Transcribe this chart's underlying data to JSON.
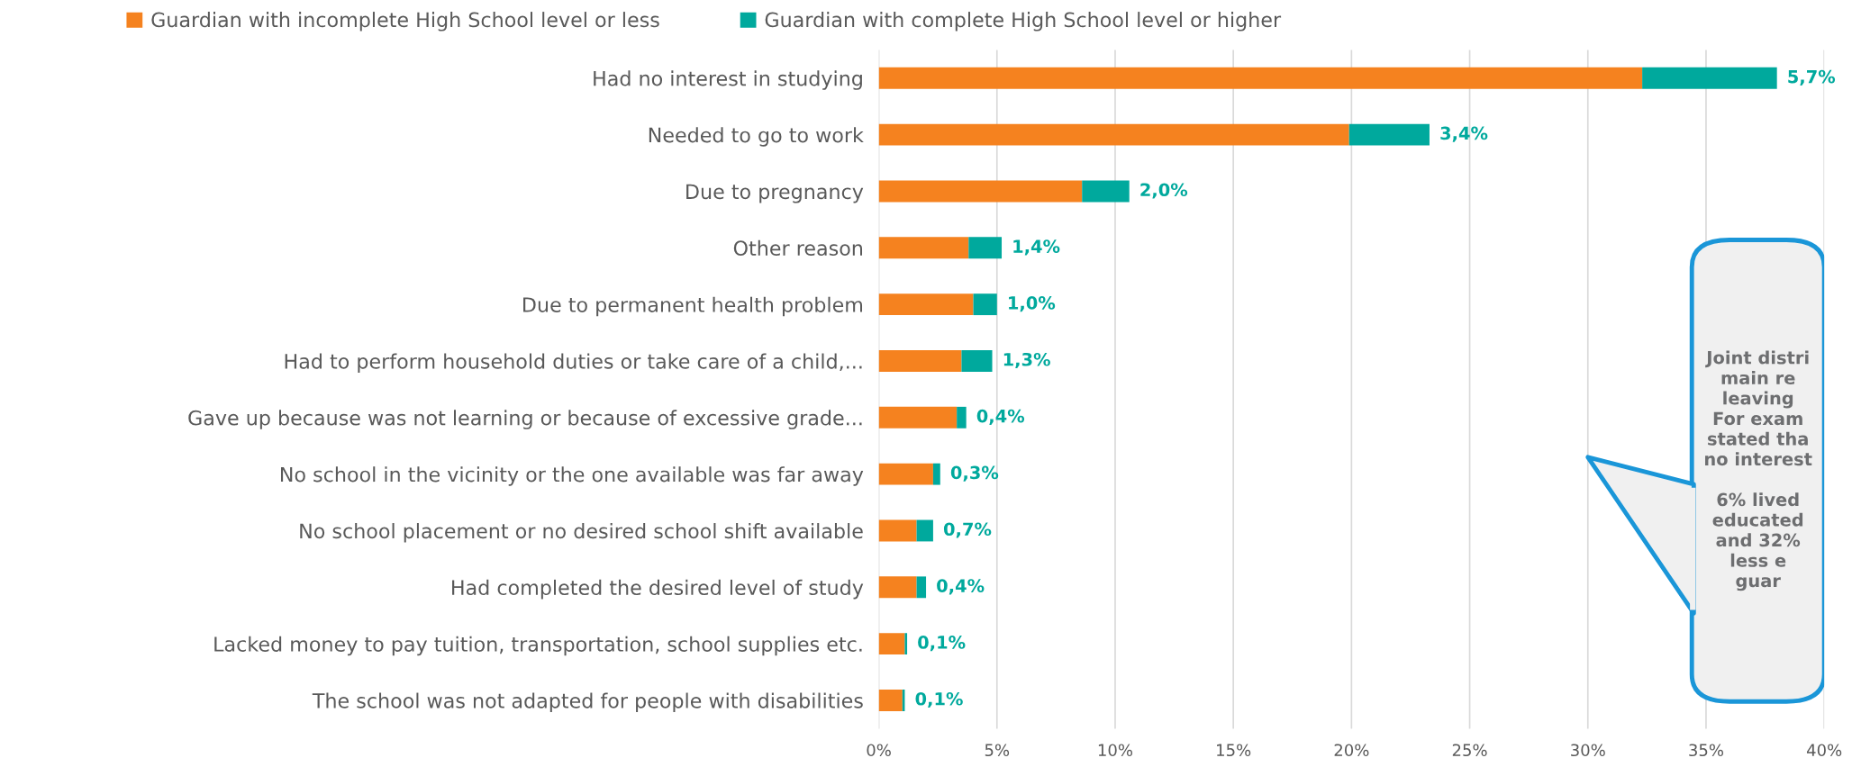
{
  "chart_data": {
    "type": "bar",
    "orientation": "horizontal",
    "stacked": true,
    "categories": [
      "Had no interest in studying",
      "Needed to go to work",
      "Due to pregnancy",
      "Other reason",
      "Due to permanent health problem",
      "Had to perform household duties or take care of a child,...",
      "Gave up because was not learning or because of excessive grade...",
      "No school in the vicinity or the one available was far away",
      "No school placement or no desired school shift available",
      "Had completed the desired level of study",
      "Lacked money to pay tuition, transportation, school supplies etc.",
      "The school was not adapted for people with disabilities"
    ],
    "series": [
      {
        "name": "Guardian with incomplete High School level or less",
        "color": "#f5821f",
        "values": [
          32.3,
          19.9,
          8.6,
          3.8,
          4.0,
          3.5,
          3.3,
          2.3,
          1.6,
          1.6,
          1.1,
          1.0
        ]
      },
      {
        "name": "Guardian with complete High School level or higher",
        "color": "#00a99d",
        "values": [
          5.7,
          3.4,
          2.0,
          1.4,
          1.0,
          1.3,
          0.4,
          0.3,
          0.7,
          0.4,
          0.1,
          0.1
        ],
        "value_labels": [
          "5,7%",
          "3,4%",
          "2,0%",
          "1,4%",
          "1,0%",
          "1,3%",
          "0,4%",
          "0,3%",
          "0,7%",
          "0,4%",
          "0,1%",
          "0,1%"
        ]
      }
    ],
    "xlim": [
      0,
      40
    ],
    "xticks": [
      {
        "value": 0,
        "label": "0%"
      },
      {
        "value": 5,
        "label": "5%"
      },
      {
        "value": 10,
        "label": "10%"
      },
      {
        "value": 15,
        "label": "15%"
      },
      {
        "value": 20,
        "label": "20%"
      },
      {
        "value": 25,
        "label": "25%"
      },
      {
        "value": 30,
        "label": "30%"
      },
      {
        "value": 35,
        "label": "35%"
      },
      {
        "value": 40,
        "label": "40%"
      }
    ],
    "grid": "x",
    "legend": "top",
    "annotations": [
      "Joint distri\nmain re\nleaving\nFor exam\nstated tha\nno interest\n\n6% lived\neducated\nand 32%\nless e\nguar"
    ]
  }
}
